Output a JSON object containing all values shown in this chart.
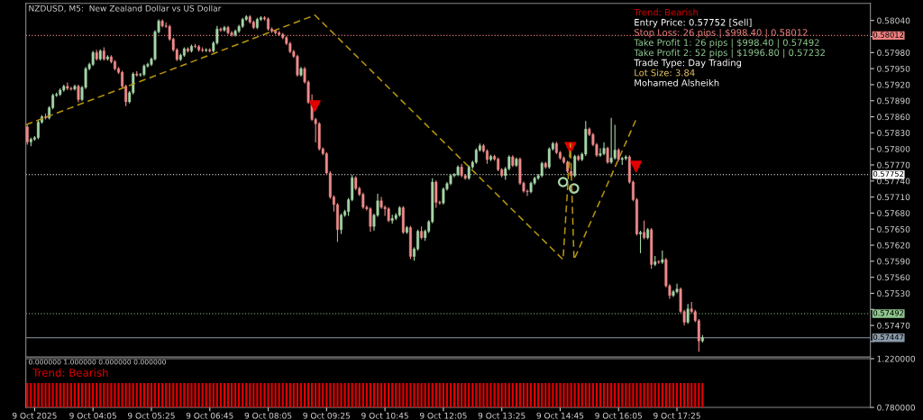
{
  "chart_data": [
    {
      "type": "candlestick",
      "title": "NZDUSD, M5:  New Zealand Dollar vs US Dollar",
      "x": [
        "2025-10-09T02:35",
        "2025-10-09T02:40",
        "2025-10-09T02:45",
        "2025-10-09T02:50",
        "2025-10-09T02:55",
        "2025-10-09T03:00",
        "2025-10-09T03:05",
        "2025-10-09T03:10",
        "2025-10-09T03:15",
        "2025-10-09T03:20",
        "2025-10-09T03:25",
        "2025-10-09T03:30",
        "2025-10-09T03:35",
        "2025-10-09T03:40",
        "2025-10-09T03:45",
        "2025-10-09T03:50",
        "2025-10-09T03:55",
        "2025-10-09T04:00",
        "2025-10-09T04:05",
        "2025-10-09T04:10",
        "2025-10-09T04:15",
        "2025-10-09T04:20",
        "2025-10-09T04:25",
        "2025-10-09T04:30",
        "2025-10-09T04:35",
        "2025-10-09T04:40",
        "2025-10-09T04:45",
        "2025-10-09T04:50",
        "2025-10-09T04:55",
        "2025-10-09T05:00",
        "2025-10-09T05:05",
        "2025-10-09T05:10",
        "2025-10-09T05:15",
        "2025-10-09T05:20",
        "2025-10-09T05:25",
        "2025-10-09T05:30",
        "2025-10-09T05:35",
        "2025-10-09T05:40",
        "2025-10-09T05:45",
        "2025-10-09T05:50",
        "2025-10-09T05:55",
        "2025-10-09T06:00",
        "2025-10-09T06:05",
        "2025-10-09T06:10",
        "2025-10-09T06:15",
        "2025-10-09T06:20",
        "2025-10-09T06:25",
        "2025-10-09T06:30",
        "2025-10-09T06:35",
        "2025-10-09T06:40",
        "2025-10-09T06:45",
        "2025-10-09T06:50",
        "2025-10-09T06:55",
        "2025-10-09T07:00",
        "2025-10-09T07:05",
        "2025-10-09T07:10",
        "2025-10-09T07:15",
        "2025-10-09T07:20",
        "2025-10-09T07:25",
        "2025-10-09T07:30",
        "2025-10-09T07:35",
        "2025-10-09T07:40",
        "2025-10-09T07:45",
        "2025-10-09T07:50",
        "2025-10-09T07:55",
        "2025-10-09T08:00",
        "2025-10-09T08:05",
        "2025-10-09T08:10",
        "2025-10-09T08:15",
        "2025-10-09T08:20",
        "2025-10-09T08:25",
        "2025-10-09T08:30",
        "2025-10-09T08:35",
        "2025-10-09T08:40",
        "2025-10-09T08:45",
        "2025-10-09T08:50",
        "2025-10-09T08:55",
        "2025-10-09T09:00",
        "2025-10-09T09:05",
        "2025-10-09T09:10",
        "2025-10-09T09:15",
        "2025-10-09T09:20",
        "2025-10-09T09:25",
        "2025-10-09T09:30",
        "2025-10-09T09:35",
        "2025-10-09T09:40",
        "2025-10-09T09:45",
        "2025-10-09T09:50",
        "2025-10-09T09:55",
        "2025-10-09T10:00",
        "2025-10-09T10:05",
        "2025-10-09T10:10",
        "2025-10-09T10:15",
        "2025-10-09T10:20",
        "2025-10-09T10:25",
        "2025-10-09T10:30",
        "2025-10-09T10:35",
        "2025-10-09T10:40",
        "2025-10-09T10:45",
        "2025-10-09T10:50",
        "2025-10-09T10:55",
        "2025-10-09T11:00",
        "2025-10-09T11:05",
        "2025-10-09T11:10",
        "2025-10-09T11:15",
        "2025-10-09T11:20",
        "2025-10-09T11:25",
        "2025-10-09T11:30",
        "2025-10-09T11:35",
        "2025-10-09T11:40",
        "2025-10-09T11:45",
        "2025-10-09T11:50",
        "2025-10-09T11:55",
        "2025-10-09T12:00",
        "2025-10-09T12:05",
        "2025-10-09T12:10",
        "2025-10-09T12:15",
        "2025-10-09T12:20",
        "2025-10-09T12:25",
        "2025-10-09T12:30",
        "2025-10-09T12:35",
        "2025-10-09T12:40",
        "2025-10-09T12:45",
        "2025-10-09T12:50",
        "2025-10-09T12:55",
        "2025-10-09T13:00",
        "2025-10-09T13:05",
        "2025-10-09T13:10",
        "2025-10-09T13:15",
        "2025-10-09T13:20",
        "2025-10-09T13:25",
        "2025-10-09T13:30",
        "2025-10-09T13:35",
        "2025-10-09T13:40",
        "2025-10-09T13:45",
        "2025-10-09T13:50",
        "2025-10-09T13:55",
        "2025-10-09T14:00",
        "2025-10-09T14:05",
        "2025-10-09T14:10",
        "2025-10-09T14:15",
        "2025-10-09T14:20",
        "2025-10-09T14:25",
        "2025-10-09T14:30",
        "2025-10-09T14:35",
        "2025-10-09T14:40",
        "2025-10-09T14:45",
        "2025-10-09T14:50",
        "2025-10-09T14:55",
        "2025-10-09T15:00",
        "2025-10-09T15:05",
        "2025-10-09T15:10",
        "2025-10-09T15:15",
        "2025-10-09T15:20",
        "2025-10-09T15:25",
        "2025-10-09T15:30",
        "2025-10-09T15:35",
        "2025-10-09T15:40",
        "2025-10-09T15:45",
        "2025-10-09T15:50",
        "2025-10-09T15:55",
        "2025-10-09T16:00",
        "2025-10-09T16:05",
        "2025-10-09T16:10",
        "2025-10-09T16:15",
        "2025-10-09T16:20",
        "2025-10-09T16:25",
        "2025-10-09T16:30",
        "2025-10-09T16:35",
        "2025-10-09T16:40",
        "2025-10-09T16:45",
        "2025-10-09T16:50",
        "2025-10-09T16:55",
        "2025-10-09T17:00",
        "2025-10-09T17:05",
        "2025-10-09T17:10",
        "2025-10-09T17:15",
        "2025-10-09T17:20",
        "2025-10-09T17:25",
        "2025-10-09T17:30",
        "2025-10-09T17:35",
        "2025-10-09T17:40",
        "2025-10-09T17:45",
        "2025-10-09T17:50",
        "2025-10-09T17:55",
        "2025-10-09T18:00"
      ],
      "ohlc": [
        [
          0.57841,
          0.57844,
          0.57808,
          0.57813
        ],
        [
          0.57813,
          0.57821,
          0.57805,
          0.57818
        ],
        [
          0.57818,
          0.57824,
          0.57815,
          0.57821
        ],
        [
          0.57821,
          0.57853,
          0.57818,
          0.5785
        ],
        [
          0.5785,
          0.57863,
          0.57847,
          0.5786
        ],
        [
          0.5786,
          0.57866,
          0.57855,
          0.57858
        ],
        [
          0.57858,
          0.5788,
          0.57855,
          0.57877
        ],
        [
          0.57877,
          0.57903,
          0.57874,
          0.579
        ],
        [
          0.579,
          0.57905,
          0.57897,
          0.57902
        ],
        [
          0.57902,
          0.57913,
          0.57899,
          0.5791
        ],
        [
          0.5791,
          0.5792,
          0.57907,
          0.57917
        ],
        [
          0.57917,
          0.57924,
          0.5791,
          0.57913
        ],
        [
          0.57913,
          0.57916,
          0.57909,
          0.57912
        ],
        [
          0.57912,
          0.5792,
          0.57909,
          0.57917
        ],
        [
          0.57917,
          0.5792,
          0.57887,
          0.57892
        ],
        [
          0.57892,
          0.57918,
          0.57889,
          0.57915
        ],
        [
          0.57915,
          0.57953,
          0.57912,
          0.5795
        ],
        [
          0.5795,
          0.57961,
          0.57947,
          0.57958
        ],
        [
          0.57958,
          0.57983,
          0.57955,
          0.5798
        ],
        [
          0.5798,
          0.57985,
          0.57965,
          0.57968
        ],
        [
          0.57968,
          0.57986,
          0.57965,
          0.57983
        ],
        [
          0.57983,
          0.5799,
          0.57965,
          0.57968
        ],
        [
          0.57968,
          0.57975,
          0.57965,
          0.57972
        ],
        [
          0.57972,
          0.57975,
          0.5796,
          0.57963
        ],
        [
          0.57963,
          0.57966,
          0.57947,
          0.5795
        ],
        [
          0.5795,
          0.57953,
          0.5794,
          0.57943
        ],
        [
          0.57943,
          0.57946,
          0.57914,
          0.57917
        ],
        [
          0.57917,
          0.5792,
          0.5788,
          0.57888
        ],
        [
          0.57888,
          0.57908,
          0.57885,
          0.57905
        ],
        [
          0.57905,
          0.57943,
          0.57902,
          0.5794
        ],
        [
          0.5794,
          0.57945,
          0.57935,
          0.57938
        ],
        [
          0.57938,
          0.57942,
          0.57935,
          0.57939
        ],
        [
          0.57939,
          0.57958,
          0.57936,
          0.57955
        ],
        [
          0.57955,
          0.57961,
          0.57952,
          0.57958
        ],
        [
          0.57958,
          0.57971,
          0.57955,
          0.57968
        ],
        [
          0.57968,
          0.58022,
          0.57965,
          0.58019
        ],
        [
          0.58019,
          0.58042,
          0.58016,
          0.58039
        ],
        [
          0.58039,
          0.58042,
          0.58027,
          0.5803
        ],
        [
          0.5803,
          0.58036,
          0.58026,
          0.58029
        ],
        [
          0.58029,
          0.58032,
          0.58002,
          0.58005
        ],
        [
          0.58005,
          0.58008,
          0.57982,
          0.57985
        ],
        [
          0.57985,
          0.57988,
          0.57964,
          0.57967
        ],
        [
          0.57967,
          0.57978,
          0.57964,
          0.57975
        ],
        [
          0.57975,
          0.5799,
          0.57972,
          0.57987
        ],
        [
          0.57987,
          0.5799,
          0.5798,
          0.57983
        ],
        [
          0.57983,
          0.57995,
          0.5798,
          0.57992
        ],
        [
          0.57992,
          0.57996,
          0.57988,
          0.57991
        ],
        [
          0.57991,
          0.57994,
          0.57982,
          0.57985
        ],
        [
          0.57985,
          0.5799,
          0.57981,
          0.57984
        ],
        [
          0.57984,
          0.57988,
          0.57981,
          0.57985
        ],
        [
          0.57985,
          0.57988,
          0.5798,
          0.57983
        ],
        [
          0.57983,
          0.58001,
          0.5798,
          0.57998
        ],
        [
          0.57998,
          0.5803,
          0.57995,
          0.58024
        ],
        [
          0.58024,
          0.58027,
          0.58019,
          0.58022
        ],
        [
          0.58022,
          0.5803,
          0.58019,
          0.58027
        ],
        [
          0.58027,
          0.5803,
          0.58014,
          0.58017
        ],
        [
          0.58017,
          0.5802,
          0.5801,
          0.58013
        ],
        [
          0.58013,
          0.58023,
          0.5801,
          0.5802
        ],
        [
          0.5802,
          0.58032,
          0.58017,
          0.58029
        ],
        [
          0.58029,
          0.58045,
          0.58026,
          0.58042
        ],
        [
          0.58042,
          0.5805,
          0.58039,
          0.58047
        ],
        [
          0.58047,
          0.5805,
          0.58034,
          0.58037
        ],
        [
          0.58037,
          0.5804,
          0.58024,
          0.58027
        ],
        [
          0.58027,
          0.58045,
          0.58024,
          0.58042
        ],
        [
          0.58042,
          0.58048,
          0.58039,
          0.58045
        ],
        [
          0.58045,
          0.58048,
          0.5804,
          0.58043
        ],
        [
          0.58043,
          0.58046,
          0.58021,
          0.58024
        ],
        [
          0.58024,
          0.58027,
          0.58017,
          0.5802
        ],
        [
          0.5802,
          0.58023,
          0.58014,
          0.58017
        ],
        [
          0.58017,
          0.5802,
          0.58011,
          0.58014
        ],
        [
          0.58014,
          0.58017,
          0.58005,
          0.58008
        ],
        [
          0.58008,
          0.58011,
          0.57994,
          0.57997
        ],
        [
          0.57997,
          0.58,
          0.57979,
          0.57982
        ],
        [
          0.57982,
          0.57985,
          0.5797,
          0.57973
        ],
        [
          0.57973,
          0.57976,
          0.57935,
          0.57938
        ],
        [
          0.57938,
          0.57953,
          0.57935,
          0.5795
        ],
        [
          0.5795,
          0.57953,
          0.57922,
          0.57925
        ],
        [
          0.57925,
          0.57928,
          0.57884,
          0.57887
        ],
        [
          0.57887,
          0.57902,
          0.57852,
          0.57855
        ],
        [
          0.57855,
          0.57858,
          0.57812,
          0.57847
        ],
        [
          0.57847,
          0.5785,
          0.57797,
          0.578
        ],
        [
          0.578,
          0.57803,
          0.57788,
          0.57791
        ],
        [
          0.57791,
          0.57794,
          0.57752,
          0.57755
        ],
        [
          0.57755,
          0.57758,
          0.57707,
          0.5771
        ],
        [
          0.5771,
          0.57713,
          0.57683,
          0.57696
        ],
        [
          0.57696,
          0.57699,
          0.57626,
          0.57649
        ],
        [
          0.57649,
          0.57679,
          0.57641,
          0.57676
        ],
        [
          0.57676,
          0.57686,
          0.57673,
          0.57683
        ],
        [
          0.57683,
          0.57708,
          0.57675,
          0.57705
        ],
        [
          0.57705,
          0.57751,
          0.57702,
          0.57746
        ],
        [
          0.57746,
          0.57749,
          0.57723,
          0.57726
        ],
        [
          0.57726,
          0.57729,
          0.57712,
          0.57715
        ],
        [
          0.57715,
          0.57718,
          0.57688,
          0.57691
        ],
        [
          0.57691,
          0.57694,
          0.57685,
          0.57688
        ],
        [
          0.57688,
          0.57691,
          0.57645,
          0.57655
        ],
        [
          0.57655,
          0.57679,
          0.57647,
          0.57676
        ],
        [
          0.57676,
          0.57716,
          0.57673,
          0.57703
        ],
        [
          0.57703,
          0.5771,
          0.57688,
          0.57691
        ],
        [
          0.57691,
          0.57694,
          0.57675,
          0.57688
        ],
        [
          0.57688,
          0.57691,
          0.57663,
          0.57666
        ],
        [
          0.57666,
          0.57677,
          0.5766,
          0.5767
        ],
        [
          0.5767,
          0.5768,
          0.57667,
          0.57676
        ],
        [
          0.57676,
          0.57693,
          0.57673,
          0.5769
        ],
        [
          0.5769,
          0.57693,
          0.57641,
          0.57644
        ],
        [
          0.57644,
          0.57656,
          0.57641,
          0.57653
        ],
        [
          0.57653,
          0.57656,
          0.57594,
          0.57599
        ],
        [
          0.57599,
          0.57616,
          0.57591,
          0.57613
        ],
        [
          0.57613,
          0.57649,
          0.5761,
          0.57646
        ],
        [
          0.57646,
          0.57655,
          0.57631,
          0.57634
        ],
        [
          0.57634,
          0.57649,
          0.57628,
          0.57646
        ],
        [
          0.57646,
          0.57667,
          0.57643,
          0.57664
        ],
        [
          0.57664,
          0.57745,
          0.57661,
          0.57738
        ],
        [
          0.57738,
          0.57741,
          0.5769,
          0.577
        ],
        [
          0.577,
          0.57703,
          0.57696,
          0.57699
        ],
        [
          0.57699,
          0.57728,
          0.57696,
          0.57725
        ],
        [
          0.57725,
          0.57738,
          0.57722,
          0.57735
        ],
        [
          0.57735,
          0.57753,
          0.57732,
          0.5775
        ],
        [
          0.5775,
          0.57755,
          0.57747,
          0.57752
        ],
        [
          0.57752,
          0.57769,
          0.57749,
          0.57766
        ],
        [
          0.57766,
          0.57772,
          0.57747,
          0.5775
        ],
        [
          0.5775,
          0.57753,
          0.57742,
          0.57745
        ],
        [
          0.57745,
          0.57769,
          0.57742,
          0.57766
        ],
        [
          0.57766,
          0.57778,
          0.57763,
          0.57775
        ],
        [
          0.57775,
          0.57801,
          0.57772,
          0.57798
        ],
        [
          0.57798,
          0.5781,
          0.57795,
          0.57806
        ],
        [
          0.57806,
          0.57809,
          0.57793,
          0.57796
        ],
        [
          0.57796,
          0.57799,
          0.57772,
          0.5778
        ],
        [
          0.5778,
          0.57789,
          0.57777,
          0.57786
        ],
        [
          0.57786,
          0.57789,
          0.57778,
          0.57781
        ],
        [
          0.57781,
          0.57784,
          0.57758,
          0.57761
        ],
        [
          0.57761,
          0.57764,
          0.57747,
          0.5775
        ],
        [
          0.5775,
          0.57766,
          0.57742,
          0.57763
        ],
        [
          0.57763,
          0.57788,
          0.5776,
          0.57785
        ],
        [
          0.57785,
          0.57788,
          0.57766,
          0.57769
        ],
        [
          0.57769,
          0.57784,
          0.57766,
          0.57781
        ],
        [
          0.57781,
          0.57784,
          0.57733,
          0.57736
        ],
        [
          0.57736,
          0.57739,
          0.57718,
          0.57721
        ],
        [
          0.57721,
          0.57724,
          0.57712,
          0.5772
        ],
        [
          0.5772,
          0.57739,
          0.57717,
          0.57736
        ],
        [
          0.57736,
          0.57748,
          0.57733,
          0.57745
        ],
        [
          0.57745,
          0.57753,
          0.57742,
          0.5775
        ],
        [
          0.5775,
          0.57776,
          0.57747,
          0.57773
        ],
        [
          0.57773,
          0.57776,
          0.57763,
          0.57766
        ],
        [
          0.57766,
          0.57803,
          0.57763,
          0.578
        ],
        [
          0.578,
          0.57813,
          0.57797,
          0.5781
        ],
        [
          0.5781,
          0.57813,
          0.5779,
          0.57793
        ],
        [
          0.57793,
          0.57796,
          0.5778,
          0.57783
        ],
        [
          0.57783,
          0.57786,
          0.57772,
          0.57775
        ],
        [
          0.57775,
          0.57778,
          0.57755,
          0.57758
        ],
        [
          0.57758,
          0.57761,
          0.57747,
          0.5775
        ],
        [
          0.5775,
          0.57789,
          0.57747,
          0.57786
        ],
        [
          0.57786,
          0.57789,
          0.57777,
          0.5778
        ],
        [
          0.5778,
          0.57793,
          0.57777,
          0.5779
        ],
        [
          0.5779,
          0.57852,
          0.57787,
          0.57837
        ],
        [
          0.57837,
          0.5784,
          0.57824,
          0.57827
        ],
        [
          0.57827,
          0.5783,
          0.57805,
          0.57808
        ],
        [
          0.57808,
          0.57811,
          0.57785,
          0.57788
        ],
        [
          0.57788,
          0.57801,
          0.57785,
          0.57791
        ],
        [
          0.57791,
          0.57812,
          0.57788,
          0.57801
        ],
        [
          0.57801,
          0.57804,
          0.57772,
          0.57775
        ],
        [
          0.57775,
          0.57858,
          0.57772,
          0.57783
        ],
        [
          0.57783,
          0.57845,
          0.5778,
          0.57798
        ],
        [
          0.57798,
          0.57801,
          0.57777,
          0.5778
        ],
        [
          0.5778,
          0.57785,
          0.5777,
          0.57782
        ],
        [
          0.57782,
          0.57788,
          0.57779,
          0.57785
        ],
        [
          0.57785,
          0.57788,
          0.57735,
          0.57738
        ],
        [
          0.57738,
          0.57741,
          0.57702,
          0.57705
        ],
        [
          0.57705,
          0.57708,
          0.57638,
          0.57641
        ],
        [
          0.57641,
          0.57647,
          0.57605,
          0.57644
        ],
        [
          0.57644,
          0.57666,
          0.57631,
          0.57634
        ],
        [
          0.57634,
          0.57652,
          0.57631,
          0.57649
        ],
        [
          0.57649,
          0.57652,
          0.57576,
          0.57584
        ],
        [
          0.57584,
          0.576,
          0.57581,
          0.57589
        ],
        [
          0.57589,
          0.57592,
          0.57585,
          0.57588
        ],
        [
          0.57588,
          0.5761,
          0.57585,
          0.57593
        ],
        [
          0.57593,
          0.57596,
          0.57541,
          0.57544
        ],
        [
          0.57544,
          0.57547,
          0.5752,
          0.57526
        ],
        [
          0.57526,
          0.57536,
          0.57523,
          0.57533
        ],
        [
          0.57533,
          0.57548,
          0.5753,
          0.57538
        ],
        [
          0.57538,
          0.57541,
          0.57493,
          0.57496
        ],
        [
          0.57496,
          0.57499,
          0.5747,
          0.57476
        ],
        [
          0.57476,
          0.5751,
          0.57473,
          0.57501
        ],
        [
          0.57501,
          0.57514,
          0.57493,
          0.57496
        ],
        [
          0.57496,
          0.57499,
          0.57476,
          0.57479
        ],
        [
          0.57479,
          0.57482,
          0.57421,
          0.57441
        ],
        [
          0.57441,
          0.57452,
          0.57438,
          0.57447
        ]
      ],
      "series": [
        {
          "type": "line",
          "color": "#b8960c",
          "line_style": "dashed",
          "x": [
            "2025-10-09T02:33",
            "2025-10-09T09:09",
            "2025-10-09T14:49",
            "2025-10-09T14:59",
            "2025-10-09T15:04",
            "2025-10-09T16:30"
          ],
          "values": [
            0.57845,
            0.5805,
            0.57593,
            0.5781,
            0.57593,
            0.57858
          ]
        },
        {
          "type": "scatter",
          "marker": "triangle",
          "color": "#e00000",
          "x": [
            "2025-10-09T09:09",
            "2025-10-09T14:59",
            "2025-10-09T16:29"
          ],
          "values": [
            0.5788,
            0.57802,
            0.57767
          ]
        },
        {
          "type": "scatter",
          "marker": "circle",
          "color": "#a8d8a8",
          "x": [
            "2025-10-09T14:49",
            "2025-10-09T15:04"
          ],
          "values": [
            0.57738,
            0.57726
          ]
        }
      ],
      "ref_lines": [
        {
          "axis": "y",
          "value": 0.58012,
          "label": "0.58012",
          "color": "#f08080",
          "line_style": "dotted"
        },
        {
          "axis": "y",
          "value": 0.57752,
          "label": "0.57752",
          "color": "#ffffff",
          "line_style": "dotted"
        },
        {
          "axis": "y",
          "value": 0.57492,
          "label": "0.57492",
          "color": "#90c890",
          "line_style": "dotted"
        },
        {
          "axis": "y",
          "value": 0.57447,
          "label": "0.57447",
          "color": "#8a9aaa",
          "line_style": "solid"
        }
      ],
      "annotations": [
        "Trend: Bearish",
        "Entry Price: 0.57752 [Sell]",
        "Stop Loss: 26 pips | $998.40 | 0.58012",
        "Take Profit 1: 26 pips | $998.40 | 0.57492",
        "Take Profit 2: 52 pips | $1996.80 | 0.57232",
        "Trade Type: Day Trading",
        "Lot Size: 3.84",
        "Mohamed Alsheikh"
      ],
      "xlim": [
        "2025-10-09T02:33",
        "2025-10-09T21:50"
      ],
      "ylim": [
        0.57411,
        0.58072
      ],
      "yticks": [
        {
          "value": 0.5744,
          "label": null
        },
        {
          "value": 0.5747,
          "label": "0.57470"
        },
        {
          "value": 0.575,
          "label": null
        },
        {
          "value": 0.5753,
          "label": "0.57530"
        },
        {
          "value": 0.5756,
          "label": "0.57560"
        },
        {
          "value": 0.5759,
          "label": "0.57590"
        },
        {
          "value": 0.5762,
          "label": "0.57620"
        },
        {
          "value": 0.5765,
          "label": "0.57650"
        },
        {
          "value": 0.5768,
          "label": "0.57680"
        },
        {
          "value": 0.5771,
          "label": "0.57710"
        },
        {
          "value": 0.5774,
          "label": "0.57740"
        },
        {
          "value": 0.5777,
          "label": "0.57770"
        },
        {
          "value": 0.578,
          "label": "0.57800"
        },
        {
          "value": 0.5783,
          "label": "0.57830"
        },
        {
          "value": 0.5786,
          "label": "0.57860"
        },
        {
          "value": 0.5789,
          "label": "0.57890"
        },
        {
          "value": 0.5792,
          "label": "0.57920"
        },
        {
          "value": 0.5795,
          "label": "0.57950"
        },
        {
          "value": 0.5798,
          "label": "0.57980"
        },
        {
          "value": 0.5801,
          "label": null
        },
        {
          "value": 0.5804,
          "label": "0.58040"
        }
      ],
      "tick_labels": "y"
    },
    {
      "type": "bar",
      "color": "#e00000",
      "x": [
        "2025-10-09T02:35",
        "2025-10-09T02:40",
        "2025-10-09T02:45",
        "2025-10-09T02:50",
        "2025-10-09T02:55",
        "2025-10-09T03:00",
        "2025-10-09T03:05",
        "2025-10-09T03:10",
        "2025-10-09T03:15",
        "2025-10-09T03:20",
        "2025-10-09T03:25",
        "2025-10-09T03:30",
        "2025-10-09T03:35",
        "2025-10-09T03:40",
        "2025-10-09T03:45",
        "2025-10-09T03:50",
        "2025-10-09T03:55",
        "2025-10-09T04:00",
        "2025-10-09T04:05",
        "2025-10-09T04:10",
        "2025-10-09T04:15",
        "2025-10-09T04:20",
        "2025-10-09T04:25",
        "2025-10-09T04:30",
        "2025-10-09T04:35",
        "2025-10-09T04:40",
        "2025-10-09T04:45",
        "2025-10-09T04:50",
        "2025-10-09T04:55",
        "2025-10-09T05:00",
        "2025-10-09T05:05",
        "2025-10-09T05:10",
        "2025-10-09T05:15",
        "2025-10-09T05:20",
        "2025-10-09T05:25",
        "2025-10-09T05:30",
        "2025-10-09T05:35",
        "2025-10-09T05:40",
        "2025-10-09T05:45",
        "2025-10-09T05:50",
        "2025-10-09T05:55",
        "2025-10-09T06:00",
        "2025-10-09T06:05",
        "2025-10-09T06:10",
        "2025-10-09T06:15",
        "2025-10-09T06:20",
        "2025-10-09T06:25",
        "2025-10-09T06:30",
        "2025-10-09T06:35",
        "2025-10-09T06:40",
        "2025-10-09T06:45",
        "2025-10-09T06:50",
        "2025-10-09T06:55",
        "2025-10-09T07:00",
        "2025-10-09T07:05",
        "2025-10-09T07:10",
        "2025-10-09T07:15",
        "2025-10-09T07:20",
        "2025-10-09T07:25",
        "2025-10-09T07:30",
        "2025-10-09T07:35",
        "2025-10-09T07:40",
        "2025-10-09T07:45",
        "2025-10-09T07:50",
        "2025-10-09T07:55",
        "2025-10-09T08:00",
        "2025-10-09T08:05",
        "2025-10-09T08:10",
        "2025-10-09T08:15",
        "2025-10-09T08:20",
        "2025-10-09T08:25",
        "2025-10-09T08:30",
        "2025-10-09T08:35",
        "2025-10-09T08:40",
        "2025-10-09T08:45",
        "2025-10-09T08:50",
        "2025-10-09T08:55",
        "2025-10-09T09:00",
        "2025-10-09T09:05",
        "2025-10-09T09:10",
        "2025-10-09T09:15",
        "2025-10-09T09:20",
        "2025-10-09T09:25",
        "2025-10-09T09:30",
        "2025-10-09T09:35",
        "2025-10-09T09:40",
        "2025-10-09T09:45",
        "2025-10-09T09:50",
        "2025-10-09T09:55",
        "2025-10-09T10:00",
        "2025-10-09T10:05",
        "2025-10-09T10:10",
        "2025-10-09T10:15",
        "2025-10-09T10:20",
        "2025-10-09T10:25",
        "2025-10-09T10:30",
        "2025-10-09T10:35",
        "2025-10-09T10:40",
        "2025-10-09T10:45",
        "2025-10-09T10:50",
        "2025-10-09T10:55",
        "2025-10-09T11:00",
        "2025-10-09T11:05",
        "2025-10-09T11:10",
        "2025-10-09T11:15",
        "2025-10-09T11:20",
        "2025-10-09T11:25",
        "2025-10-09T11:30",
        "2025-10-09T11:35",
        "2025-10-09T11:40",
        "2025-10-09T11:45",
        "2025-10-09T11:50",
        "2025-10-09T11:55",
        "2025-10-09T12:00",
        "2025-10-09T12:05",
        "2025-10-09T12:10",
        "2025-10-09T12:15",
        "2025-10-09T12:20",
        "2025-10-09T12:25",
        "2025-10-09T12:30",
        "2025-10-09T12:35",
        "2025-10-09T12:40",
        "2025-10-09T12:45",
        "2025-10-09T12:50",
        "2025-10-09T12:55",
        "2025-10-09T13:00",
        "2025-10-09T13:05",
        "2025-10-09T13:10",
        "2025-10-09T13:15",
        "2025-10-09T13:20",
        "2025-10-09T13:25",
        "2025-10-09T13:30",
        "2025-10-09T13:35",
        "2025-10-09T13:40",
        "2025-10-09T13:45",
        "2025-10-09T13:50",
        "2025-10-09T13:55",
        "2025-10-09T14:00",
        "2025-10-09T14:05",
        "2025-10-09T14:10",
        "2025-10-09T14:15",
        "2025-10-09T14:20",
        "2025-10-09T14:25",
        "2025-10-09T14:30",
        "2025-10-09T14:35",
        "2025-10-09T14:40",
        "2025-10-09T14:45",
        "2025-10-09T14:50",
        "2025-10-09T14:55",
        "2025-10-09T15:00",
        "2025-10-09T15:05",
        "2025-10-09T15:10",
        "2025-10-09T15:15",
        "2025-10-09T15:20",
        "2025-10-09T15:25",
        "2025-10-09T15:30",
        "2025-10-09T15:35",
        "2025-10-09T15:40",
        "2025-10-09T15:45",
        "2025-10-09T15:50",
        "2025-10-09T15:55",
        "2025-10-09T16:00",
        "2025-10-09T16:05",
        "2025-10-09T16:10",
        "2025-10-09T16:15",
        "2025-10-09T16:20",
        "2025-10-09T16:25",
        "2025-10-09T16:30",
        "2025-10-09T16:35",
        "2025-10-09T16:40",
        "2025-10-09T16:45",
        "2025-10-09T16:50",
        "2025-10-09T16:55",
        "2025-10-09T17:00",
        "2025-10-09T17:05",
        "2025-10-09T17:10",
        "2025-10-09T17:15",
        "2025-10-09T17:20",
        "2025-10-09T17:25",
        "2025-10-09T17:30",
        "2025-10-09T17:35",
        "2025-10-09T17:40",
        "2025-10-09T17:45",
        "2025-10-09T17:50",
        "2025-10-09T17:55",
        "2025-10-09T18:00"
      ],
      "values": [
        1,
        1,
        1,
        1,
        1,
        1,
        1,
        1,
        1,
        1,
        1,
        1,
        1,
        1,
        1,
        1,
        1,
        1,
        1,
        1,
        1,
        1,
        1,
        1,
        1,
        1,
        1,
        1,
        1,
        1,
        1,
        1,
        1,
        1,
        1,
        1,
        1,
        1,
        1,
        1,
        1,
        1,
        1,
        1,
        1,
        1,
        1,
        1,
        1,
        1,
        1,
        1,
        1,
        1,
        1,
        1,
        1,
        1,
        1,
        1,
        1,
        1,
        1,
        1,
        1,
        1,
        1,
        1,
        1,
        1,
        1,
        1,
        1,
        1,
        1,
        1,
        1,
        1,
        1,
        1,
        1,
        1,
        1,
        1,
        1,
        1,
        1,
        1,
        1,
        1,
        1,
        1,
        1,
        1,
        1,
        1,
        1,
        1,
        1,
        1,
        1,
        1,
        1,
        1,
        1,
        1,
        1,
        1,
        1,
        1,
        1,
        1,
        1,
        1,
        1,
        1,
        1,
        1,
        1,
        1,
        1,
        1,
        1,
        1,
        1,
        1,
        1,
        1,
        1,
        1,
        1,
        1,
        1,
        1,
        1,
        1,
        1,
        1,
        1,
        1,
        1,
        1,
        1,
        1,
        1,
        1,
        1,
        1,
        1,
        1,
        1,
        1,
        1,
        1,
        1,
        1,
        1,
        1,
        1,
        1,
        1,
        1,
        1,
        1,
        1,
        1,
        1,
        1,
        1,
        1,
        1,
        1,
        1,
        1,
        1,
        1,
        1,
        1,
        1,
        1,
        1,
        1,
        1,
        1,
        1,
        1
      ],
      "annotations": [
        "0.000000 1.000000 0.000000 0.000000",
        "Trend: Bearish"
      ],
      "xlim": [
        "2025-10-09T02:33",
        "2025-10-09T21:50"
      ],
      "xticks": [
        {
          "value": "2025-10-09T02:45",
          "label": "9 Oct 2025"
        },
        {
          "value": "2025-10-09T04:05",
          "label": "9 Oct 04:05"
        },
        {
          "value": "2025-10-09T05:25",
          "label": "9 Oct 05:25"
        },
        {
          "value": "2025-10-09T06:45",
          "label": "9 Oct 06:45"
        },
        {
          "value": "2025-10-09T08:05",
          "label": "9 Oct 08:05"
        },
        {
          "value": "2025-10-09T09:25",
          "label": "9 Oct 09:25"
        },
        {
          "value": "2025-10-09T10:45",
          "label": "9 Oct 10:45"
        },
        {
          "value": "2025-10-09T12:05",
          "label": "9 Oct 12:05"
        },
        {
          "value": "2025-10-09T13:25",
          "label": "9 Oct 13:25"
        },
        {
          "value": "2025-10-09T14:45",
          "label": "9 Oct 14:45"
        },
        {
          "value": "2025-10-09T16:05",
          "label": "9 Oct 16:05"
        },
        {
          "value": "2025-10-09T17:25",
          "label": "9 Oct 17:25"
        }
      ],
      "ylim": [
        0.78,
        1.22
      ],
      "yticks": [
        {
          "value": 0.78,
          "label": "0.780000"
        },
        {
          "value": 1.22,
          "label": "1.220000"
        }
      ]
    }
  ]
}
